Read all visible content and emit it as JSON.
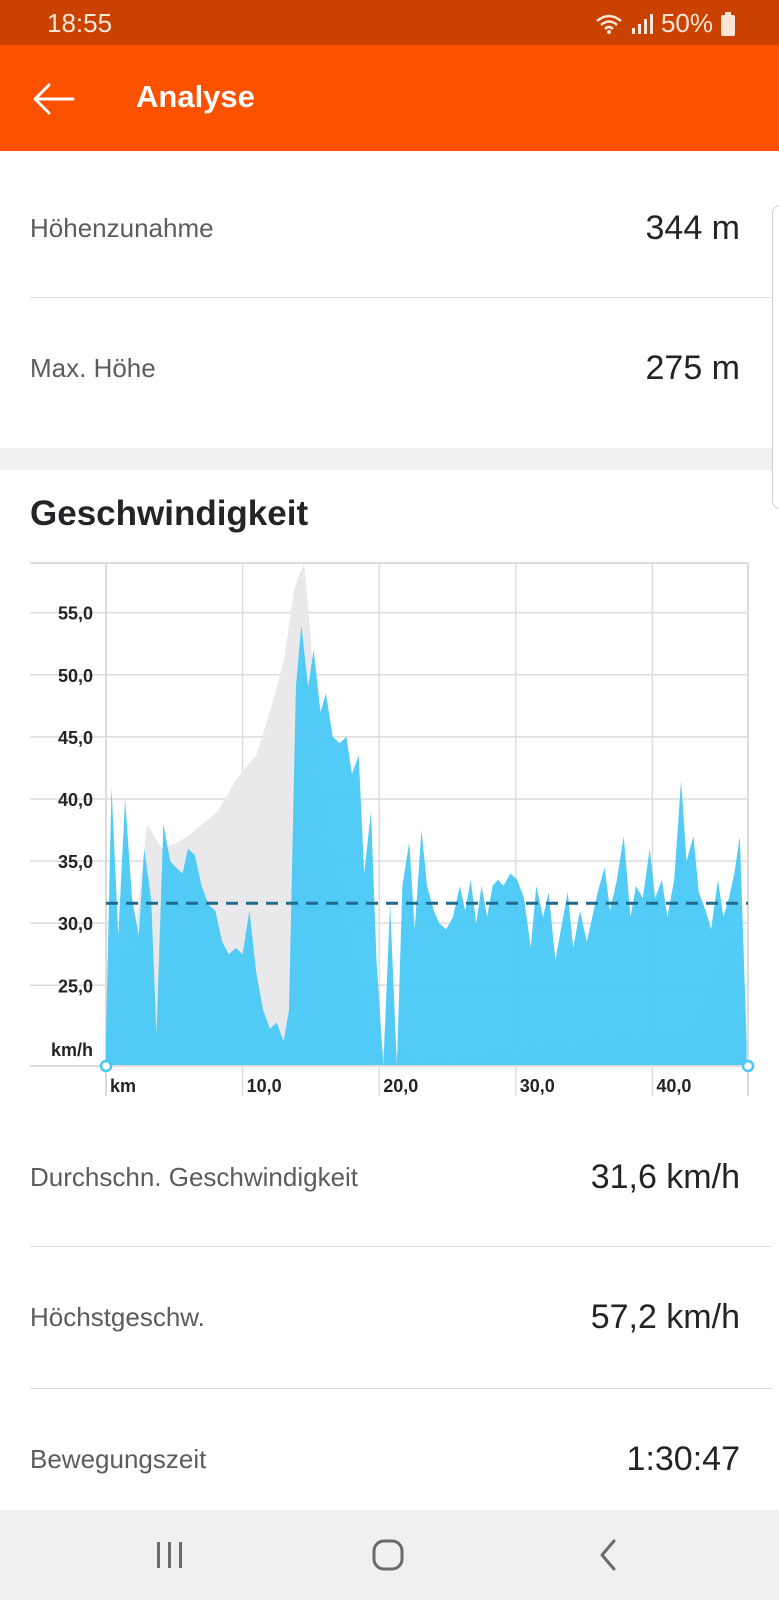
{
  "status_bar": {
    "time": "18:55",
    "battery": "50%"
  },
  "app_bar": {
    "title": "Analyse",
    "back_icon": "arrow-left-icon"
  },
  "stats_top": [
    {
      "label": "Höhenzunahme",
      "value": "344 m"
    },
    {
      "label": "Max. Höhe",
      "value": "275 m"
    }
  ],
  "speed_section": {
    "title": "Geschwindigkeit"
  },
  "chart_data": {
    "type": "area",
    "x_unit_label": "km",
    "y_unit_label": "km/h",
    "xlim": [
      0,
      47
    ],
    "ylim": [
      18.5,
      59
    ],
    "x_ticks": [
      10,
      20,
      30,
      40
    ],
    "x_tick_labels": [
      "10,0",
      "20,0",
      "30,0",
      "40,0"
    ],
    "y_ticks": [
      25,
      30,
      35,
      40,
      45,
      50,
      55
    ],
    "y_tick_labels": [
      "25,0",
      "30,0",
      "35,0",
      "40,0",
      "45,0",
      "50,0",
      "55,0"
    ],
    "average": 31.6,
    "grid": true,
    "colors": {
      "speed": "#45c8f5",
      "elevation": "#e9e9eb",
      "average_line": "#1f6b8c",
      "grid": "#dcdcdc",
      "label": "#242428"
    },
    "series": [
      {
        "x": [
          0,
          0.4,
          0.9,
          1.4,
          1.9,
          2.4,
          2.8,
          3.3,
          3.7,
          4.2,
          4.7,
          5.1,
          5.6,
          6.0,
          6.5,
          7.0,
          7.5,
          8.0,
          8.5,
          9.0,
          9.5,
          10.0,
          10.5,
          11.0,
          11.5,
          12.0,
          12.5,
          13.0,
          13.4,
          13.9,
          14.3,
          14.8,
          15.2,
          15.7,
          16.1,
          16.6,
          17.1,
          17.6,
          18.0,
          18.5,
          18.9,
          19.4,
          19.8,
          20.3,
          20.8,
          21.3,
          21.7,
          22.2,
          22.6,
          23.1,
          23.5,
          24.0,
          24.4,
          24.9,
          25.4,
          25.9,
          26.3,
          26.7,
          27.1,
          27.5,
          27.9,
          28.3,
          28.7,
          29.1,
          29.6,
          30.1,
          30.6,
          31.1,
          31.5,
          32.0,
          32.4,
          32.9,
          33.3,
          33.8,
          34.2,
          34.7,
          35.2,
          35.6,
          36.0,
          36.5,
          36.9,
          37.4,
          37.9,
          38.4,
          38.8,
          39.3,
          39.8,
          40.2,
          40.7,
          41.1,
          41.6,
          42.1,
          42.5,
          43.0,
          43.4,
          43.9,
          44.3,
          44.8,
          45.2,
          45.6,
          46.0,
          46.4,
          46.9
        ],
        "y": [
          21,
          41,
          29,
          40,
          32,
          29,
          36,
          32,
          21,
          38,
          35,
          34.5,
          34,
          36,
          35.5,
          33,
          31.5,
          31,
          28.5,
          27.5,
          28,
          27.5,
          31,
          26,
          23,
          21.5,
          22,
          20.5,
          23,
          49,
          54,
          49,
          52,
          47,
          48.5,
          45,
          44.5,
          45,
          42,
          43.5,
          34,
          39,
          27,
          18.5,
          31.5,
          18.5,
          33,
          36.5,
          29.5,
          37.5,
          33,
          31,
          30,
          29.5,
          30.5,
          33,
          31,
          33.5,
          30,
          33,
          30.5,
          33,
          33.5,
          33,
          34,
          33.5,
          32,
          28,
          33,
          30.5,
          32.5,
          27,
          29.5,
          32.5,
          28,
          31,
          28.5,
          30.5,
          32.5,
          34.5,
          31,
          33.5,
          37,
          30.5,
          33,
          32,
          36,
          32,
          33.5,
          30.5,
          33.5,
          41.5,
          35,
          37,
          32.5,
          31,
          29.5,
          33.5,
          30.5,
          32,
          34,
          37,
          20.5
        ]
      },
      {
        "x": [
          0,
          1.1,
          2.2,
          3.0,
          4.1,
          5.2,
          6.0,
          7.1,
          8.2,
          9.0,
          9.5,
          10.2,
          11.0,
          12.0,
          13.0,
          13.8,
          14.5,
          15.0,
          15.5,
          16.0,
          17.0,
          17.5,
          18.5,
          19.0,
          20.0,
          21.0,
          22.0,
          23.0,
          24.0,
          25.0,
          26.0,
          27.0,
          28.0,
          29.0,
          30.0,
          31.0,
          32.0,
          33.0,
          34.0,
          35.0,
          36.0,
          37.0,
          38.0,
          39.0,
          40.0,
          41.0,
          42.0,
          43.0,
          44.0,
          45.0,
          46.0,
          46.9
        ],
        "y": [
          21,
          26,
          30,
          38,
          36,
          36.5,
          37,
          38,
          39,
          40.5,
          41.5,
          42.5,
          43.5,
          47,
          51,
          57,
          59,
          53,
          43,
          38,
          33,
          30,
          25,
          22,
          20,
          19.5,
          19.5,
          19.2,
          19,
          19.2,
          19.3,
          19,
          19.5,
          20,
          19.5,
          20.5,
          20,
          20.5,
          20,
          20.5,
          21,
          20.5,
          21,
          20.5,
          21.5,
          22,
          21,
          22,
          23.5,
          27,
          29.5,
          20.5
        ]
      }
    ]
  },
  "stats_bottom": [
    {
      "label": "Durchschn. Geschwindigkeit",
      "value": "31,6 km/h"
    },
    {
      "label": "Höchstgeschw.",
      "value": "57,2 km/h"
    },
    {
      "label": "Bewegungszeit",
      "value": "1:30:47"
    }
  ],
  "nav_bar": {
    "recents_icon": "recent-apps-icon",
    "home_icon": "home-icon",
    "back_icon": "system-back-icon"
  }
}
